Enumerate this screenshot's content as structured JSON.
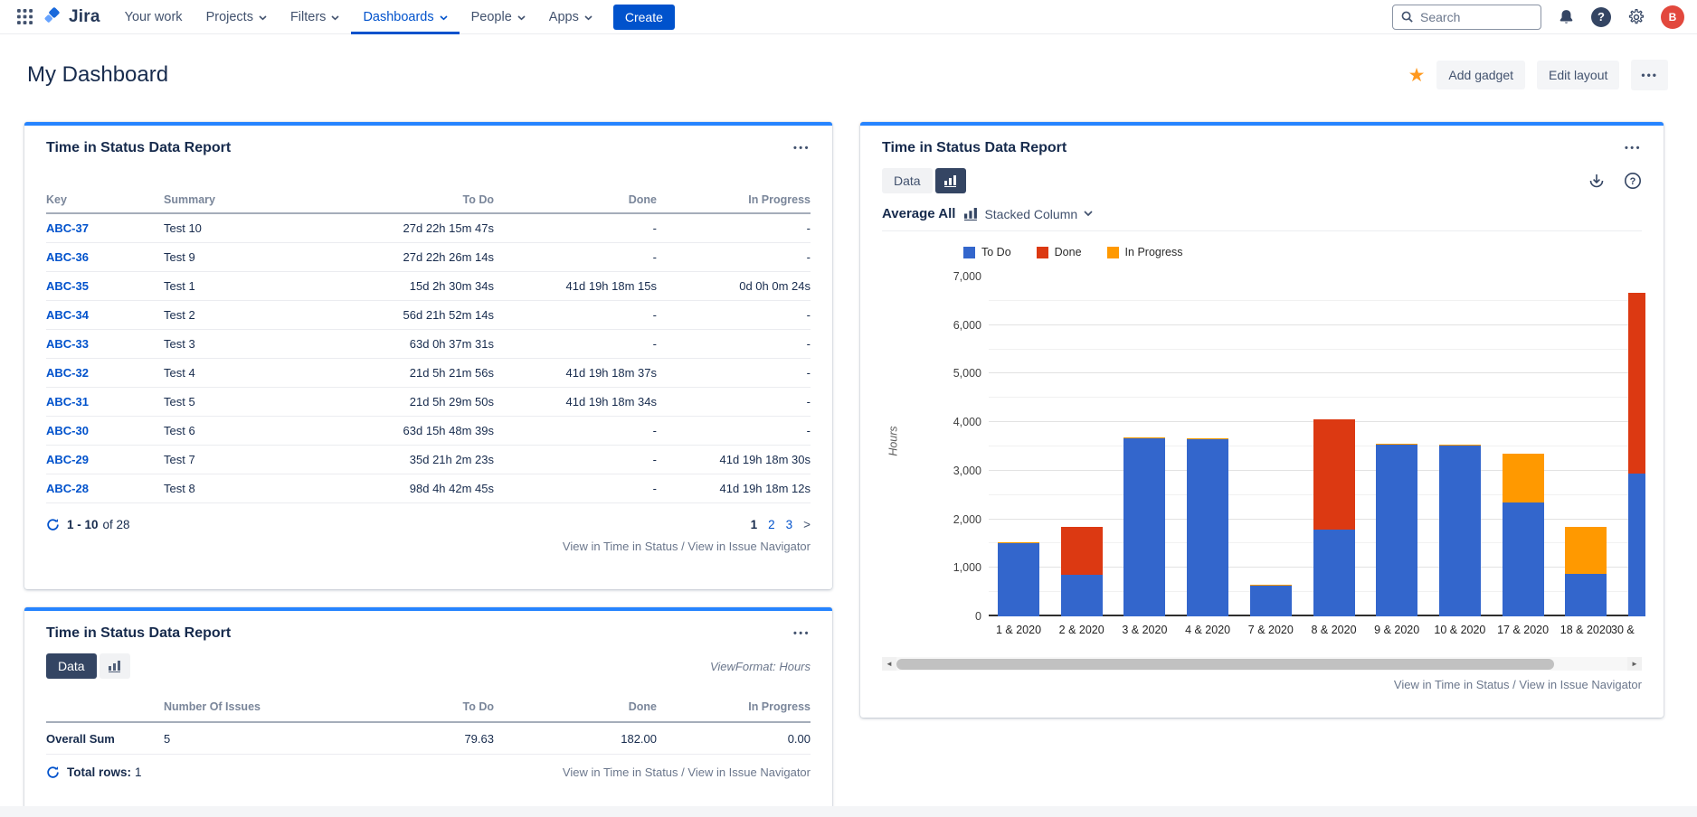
{
  "nav": {
    "brand": "Jira",
    "items": [
      {
        "label": "Your work",
        "chevron": false,
        "active": false
      },
      {
        "label": "Projects",
        "chevron": true,
        "active": false
      },
      {
        "label": "Filters",
        "chevron": true,
        "active": false
      },
      {
        "label": "Dashboards",
        "chevron": true,
        "active": true
      },
      {
        "label": "People",
        "chevron": true,
        "active": false
      },
      {
        "label": "Apps",
        "chevron": true,
        "active": false
      }
    ],
    "create_label": "Create",
    "search_placeholder": "Search",
    "avatar_initial": "B"
  },
  "header": {
    "title": "My Dashboard",
    "add_gadget": "Add gadget",
    "edit_layout": "Edit layout",
    "more": "•••"
  },
  "colors": {
    "accent": "#0052CC",
    "panel_top_border": "#2684FF",
    "star": "#FF991F",
    "avatar_bg": "#E2483D",
    "bar_todo": "#3366CC",
    "bar_done": "#DC3912",
    "bar_inprogress": "#FF9900"
  },
  "panels": {
    "issues_table": {
      "title": "Time in Status Data Report",
      "more": "•••",
      "columns": [
        "Key",
        "Summary",
        "To Do",
        "Done",
        "In Progress"
      ],
      "rows": [
        {
          "key": "ABC-37",
          "summary": "Test 10",
          "todo": "27d 22h 15m 47s",
          "done": "-",
          "in_progress": "-"
        },
        {
          "key": "ABC-36",
          "summary": "Test 9",
          "todo": "27d 22h 26m 14s",
          "done": "-",
          "in_progress": "-"
        },
        {
          "key": "ABC-35",
          "summary": "Test 1",
          "todo": "15d 2h 30m 34s",
          "done": "41d 19h 18m 15s",
          "in_progress": "0d 0h 0m 24s"
        },
        {
          "key": "ABC-34",
          "summary": "Test 2",
          "todo": "56d 21h 52m 14s",
          "done": "-",
          "in_progress": "-"
        },
        {
          "key": "ABC-33",
          "summary": "Test 3",
          "todo": "63d 0h 37m 31s",
          "done": "-",
          "in_progress": "-"
        },
        {
          "key": "ABC-32",
          "summary": "Test 4",
          "todo": "21d 5h 21m 56s",
          "done": "41d 19h 18m 37s",
          "in_progress": "-"
        },
        {
          "key": "ABC-31",
          "summary": "Test 5",
          "todo": "21d 5h 29m 50s",
          "done": "41d 19h 18m 34s",
          "in_progress": "-"
        },
        {
          "key": "ABC-30",
          "summary": "Test 6",
          "todo": "63d 15h 48m 39s",
          "done": "-",
          "in_progress": "-"
        },
        {
          "key": "ABC-29",
          "summary": "Test 7",
          "todo": "35d 21h 2m 23s",
          "done": "-",
          "in_progress": "41d 19h 18m 30s"
        },
        {
          "key": "ABC-28",
          "summary": "Test 8",
          "todo": "98d 4h 42m 45s",
          "done": "-",
          "in_progress": "41d 19h 18m 12s"
        }
      ],
      "pagination": {
        "range": "1 - 10",
        "of": "of 28",
        "pages": [
          {
            "label": "1",
            "current": true
          },
          {
            "label": "2",
            "current": false
          },
          {
            "label": "3",
            "current": false
          }
        ],
        "next": ">"
      },
      "view_link_a": "View in Time in Status",
      "view_link_sep": " / ",
      "view_link_b": "View in Issue Navigator"
    },
    "sum_table": {
      "title": "Time in Status Data Report",
      "more": "•••",
      "data_label": "Data",
      "viewformat": "ViewFormat: Hours",
      "columns": [
        "Number Of Issues",
        "To Do",
        "Done",
        "In Progress"
      ],
      "row": {
        "label": "Overall Sum",
        "issues": "5",
        "todo": "79.63",
        "done": "182.00",
        "in_progress": "0.00"
      },
      "total_rows_label": "Total rows:",
      "total_rows_value": "1",
      "view_link_a": "View in Time in Status",
      "view_link_sep": " / ",
      "view_link_b": "View in Issue Navigator"
    },
    "chart_panel": {
      "title": "Time in Status Data Report",
      "more": "•••",
      "data_label": "Data",
      "average_label": "Average All",
      "chart_type_label": "Stacked Column",
      "view_link_a": "View in Time in Status",
      "view_link_sep": " / ",
      "view_link_b": "View in Issue Navigator"
    }
  },
  "chart_data": {
    "type": "bar",
    "stacked": true,
    "ylabel": "Hours",
    "ylim": [
      0,
      7000
    ],
    "ytick_step": 1000,
    "grid_step": 500,
    "yticks": [
      "0",
      "1,000",
      "2,000",
      "3,000",
      "4,000",
      "5,000",
      "6,000",
      "7,000"
    ],
    "categories": [
      "1 & 2020",
      "2 & 2020",
      "3 & 2020",
      "4 & 2020",
      "7 & 2020",
      "8 & 2020",
      "9 & 2020",
      "10 & 2020",
      "17 & 2020",
      "18 & 2020",
      "30 &"
    ],
    "series": [
      {
        "name": "To Do",
        "color": "#3366CC",
        "values": [
          1500,
          850,
          3670,
          3650,
          650,
          1780,
          3530,
          3510,
          2350,
          870,
          2950
        ]
      },
      {
        "name": "Done",
        "color": "#DC3912",
        "values": [
          0,
          990,
          0,
          0,
          0,
          2270,
          0,
          0,
          0,
          0,
          3720
        ]
      },
      {
        "name": "In Progress",
        "color": "#FF9900",
        "values": [
          30,
          0,
          20,
          20,
          10,
          0,
          20,
          20,
          1000,
          980,
          0
        ]
      }
    ],
    "legend_position": "top"
  }
}
